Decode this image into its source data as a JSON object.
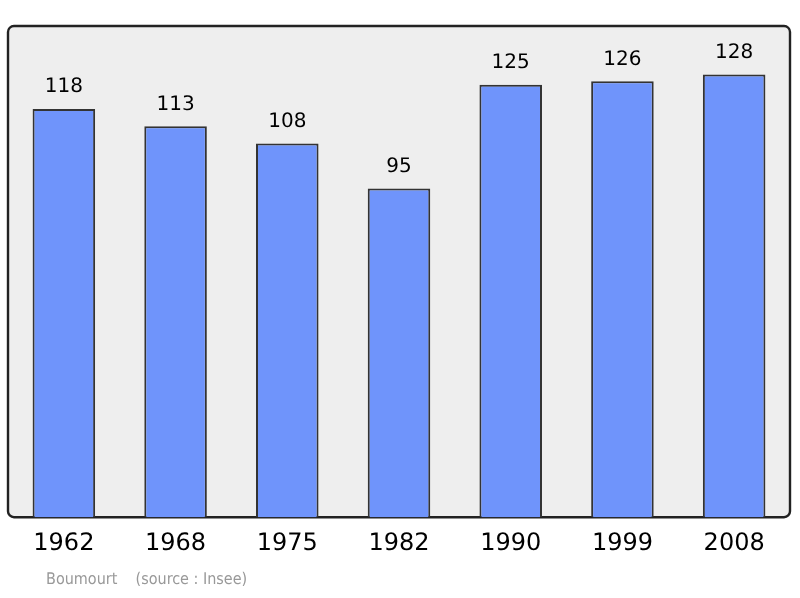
{
  "chart_data": {
    "type": "bar",
    "categories": [
      "1962",
      "1968",
      "1975",
      "1982",
      "1990",
      "1999",
      "2008"
    ],
    "values": [
      118,
      113,
      108,
      95,
      125,
      126,
      128
    ],
    "color": "#6f94fb",
    "ylim": [
      0,
      142
    ],
    "tick_labels": "x",
    "grid": false,
    "legend": false,
    "data_labels": true,
    "annotations": [
      "Boumourt    (source : Insee)"
    ]
  }
}
